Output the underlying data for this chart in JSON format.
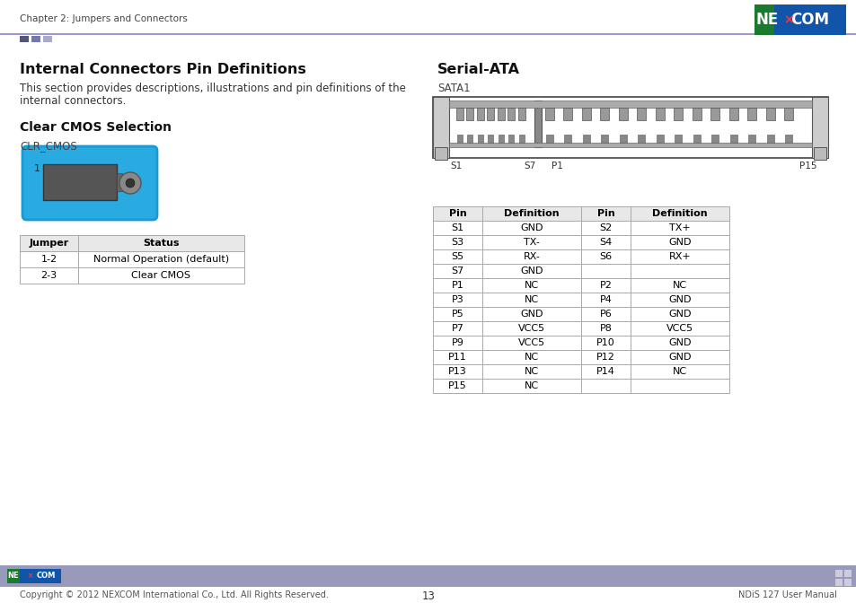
{
  "page_title": "Chapter 2: Jumpers and Connectors",
  "page_num": "13",
  "footer_left": "Copyright © 2012 NEXCOM International Co., Ltd. All Rights Reserved.",
  "footer_right": "NDiS 127 User Manual",
  "section_title": "Internal Connectors Pin Definitions",
  "section_body1": "This section provides descriptions, illustrations and pin definitions of the",
  "section_body2": "internal connectors.",
  "subsection_title": "Clear CMOS Selection",
  "clr_label": "CLR_CMOS",
  "jumper_table_headers": [
    "Jumper",
    "Status"
  ],
  "jumper_table_rows": [
    [
      "1-2",
      "Normal Operation (default)"
    ],
    [
      "2-3",
      "Clear CMOS"
    ]
  ],
  "sata_title": "Serial-ATA",
  "sata_label": "SATA1",
  "pin_table_headers": [
    "Pin",
    "Definition",
    "Pin",
    "Definition"
  ],
  "pin_table_rows": [
    [
      "S1",
      "GND",
      "S2",
      "TX+"
    ],
    [
      "S3",
      "TX-",
      "S4",
      "GND"
    ],
    [
      "S5",
      "RX-",
      "S6",
      "RX+"
    ],
    [
      "S7",
      "GND",
      "",
      ""
    ],
    [
      "P1",
      "NC",
      "P2",
      "NC"
    ],
    [
      "P3",
      "NC",
      "P4",
      "GND"
    ],
    [
      "P5",
      "GND",
      "P6",
      "GND"
    ],
    [
      "P7",
      "VCC5",
      "P8",
      "VCC5"
    ],
    [
      "P9",
      "VCC5",
      "P10",
      "GND"
    ],
    [
      "P11",
      "NC",
      "P12",
      "GND"
    ],
    [
      "P13",
      "NC",
      "P14",
      "NC"
    ],
    [
      "P15",
      "NC",
      "",
      ""
    ]
  ],
  "header_line_color": "#9999cc",
  "accent_colors": [
    "#555577",
    "#7777aa",
    "#aaaacc"
  ],
  "nexcom_green": "#1a7a2e",
  "nexcom_blue": "#1155aa",
  "footer_bar_color": "#9999bb",
  "connector_blue": "#29abe2",
  "table_header_bg": "#e8e8e8",
  "table_border": "#aaaaaa",
  "sata_label_positions": [
    "S1",
    "S7",
    "P1",
    "P15"
  ]
}
